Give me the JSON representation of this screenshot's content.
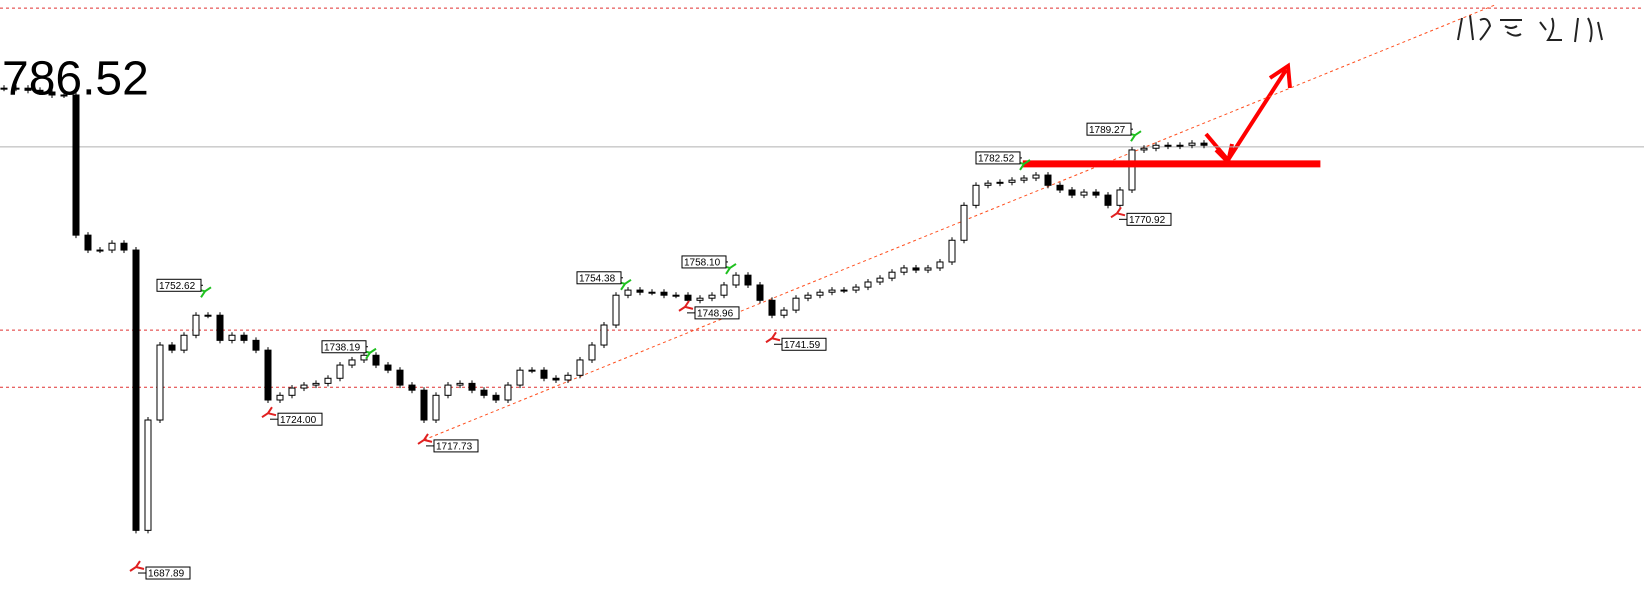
{
  "chart_data": {
    "type": "candlestick",
    "price_display": "786.52",
    "xlim": [
      -0.333,
      136.667
    ],
    "ylim": [
      1677.8,
      1821
    ],
    "values": [
      1800.3,
      1800.3,
      1799.8,
      1799.4,
      1798.7,
      1798.7,
      1765.8,
      1762.3,
      1762.3,
      1763.9,
      1762.3,
      1696.5,
      1722.4,
      1740.0,
      1738.8,
      1742.3,
      1747.0,
      1747.0,
      1741.1,
      1742.3,
      1741.1,
      1738.8,
      1727.1,
      1728.2,
      1729.9,
      1730.6,
      1731.0,
      1732.2,
      1735.3,
      1736.5,
      1737.6,
      1735.3,
      1734.1,
      1730.6,
      1729.4,
      1722.4,
      1728.2,
      1730.6,
      1731.0,
      1729.4,
      1728.2,
      1727.1,
      1730.6,
      1734.1,
      1734.1,
      1732.2,
      1731.8,
      1732.9,
      1736.5,
      1740.0,
      1744.7,
      1751.7,
      1752.9,
      1752.4,
      1752.4,
      1751.7,
      1751.7,
      1750.5,
      1751.0,
      1751.7,
      1754.1,
      1756.4,
      1754.1,
      1750.5,
      1747.0,
      1748.2,
      1751.0,
      1751.7,
      1752.4,
      1752.9,
      1752.9,
      1753.6,
      1754.8,
      1755.7,
      1757.1,
      1758.1,
      1757.6,
      1758.1,
      1759.5,
      1764.6,
      1772.8,
      1777.5,
      1778.0,
      1778.2,
      1778.7,
      1779.2,
      1779.9,
      1777.5,
      1776.4,
      1775.2,
      1775.9,
      1775.2,
      1772.8,
      1776.4,
      1785.8,
      1786.2,
      1786.9,
      1786.7,
      1786.9,
      1787.4,
      1786.9
    ],
    "annotations": [
      {
        "value": 1752.62,
        "x": 16.75,
        "kind": "high"
      },
      {
        "value": 1738.19,
        "x": 30.5,
        "kind": "high"
      },
      {
        "value": 1724.0,
        "label": "1724.00",
        "x": 22,
        "kind": "low"
      },
      {
        "value": 1717.73,
        "x": 35,
        "kind": "low"
      },
      {
        "value": 1687.89,
        "x": 11,
        "kind": "low"
      },
      {
        "value": 1754.38,
        "x": 51.75,
        "kind": "high"
      },
      {
        "value": 1748.96,
        "x": 56.75,
        "kind": "low"
      },
      {
        "value": 1758.1,
        "label": "1758.10",
        "x": 60.5,
        "kind": "high"
      },
      {
        "value": 1741.59,
        "x": 64,
        "kind": "low"
      },
      {
        "value": 1782.52,
        "x": 85,
        "kind": "high"
      },
      {
        "value": 1789.27,
        "x": 94.25,
        "kind": "high"
      },
      {
        "value": 1770.92,
        "x": 92.75,
        "kind": "low"
      }
    ],
    "levels": [
      {
        "value": 1819.1,
        "color": "#e03030",
        "style": "dashed"
      },
      {
        "value": 1743.5,
        "color": "#e03030",
        "style": "dashed"
      },
      {
        "value": 1730.1,
        "color": "#e03030",
        "style": "dashed"
      },
      {
        "value": 1786.52,
        "color": "#b0b0b0",
        "style": "solid"
      }
    ],
    "support": {
      "value": 1782.52,
      "x": [
        84.9,
        109.7
      ],
      "color": "#ff0000"
    },
    "trendline": {
      "x": [
        35,
        124.3
      ],
      "values": [
        1717.73,
        1819.9
      ],
      "color": "#ff5020"
    }
  }
}
